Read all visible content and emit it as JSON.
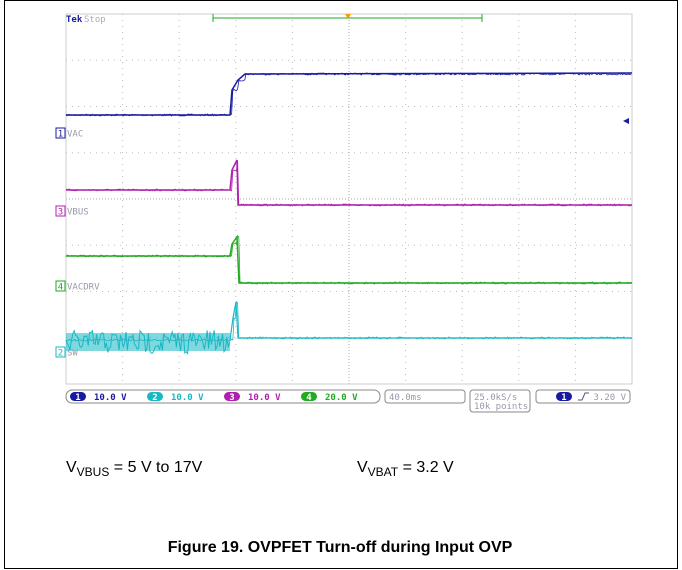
{
  "scope": {
    "brand": "Tek",
    "state": "Stop",
    "channels": [
      {
        "number": "1",
        "label": "VAC",
        "scale": "10.0 V"
      },
      {
        "number": "2",
        "label": "SW",
        "scale": "10.0 V"
      },
      {
        "number": "3",
        "label": "VBUS",
        "scale": "10.0 V"
      },
      {
        "number": "4",
        "label": "VACDRV",
        "scale": "20.0 V"
      }
    ],
    "timebase": "40.0ms",
    "sample_rate": "25.0kS/s",
    "record_length": "10k points",
    "trigger_channel": "1",
    "trigger_level": "3.20 V"
  },
  "conditions": [
    {
      "symbol": "V",
      "subscript": "VBUS",
      "text": " = 5 V to 17V"
    },
    {
      "symbol": "V",
      "subscript": "VBAT",
      "text": " = 3.2 V"
    }
  ],
  "caption": "Figure 19. OVPFET Turn-off during Input OVP"
}
